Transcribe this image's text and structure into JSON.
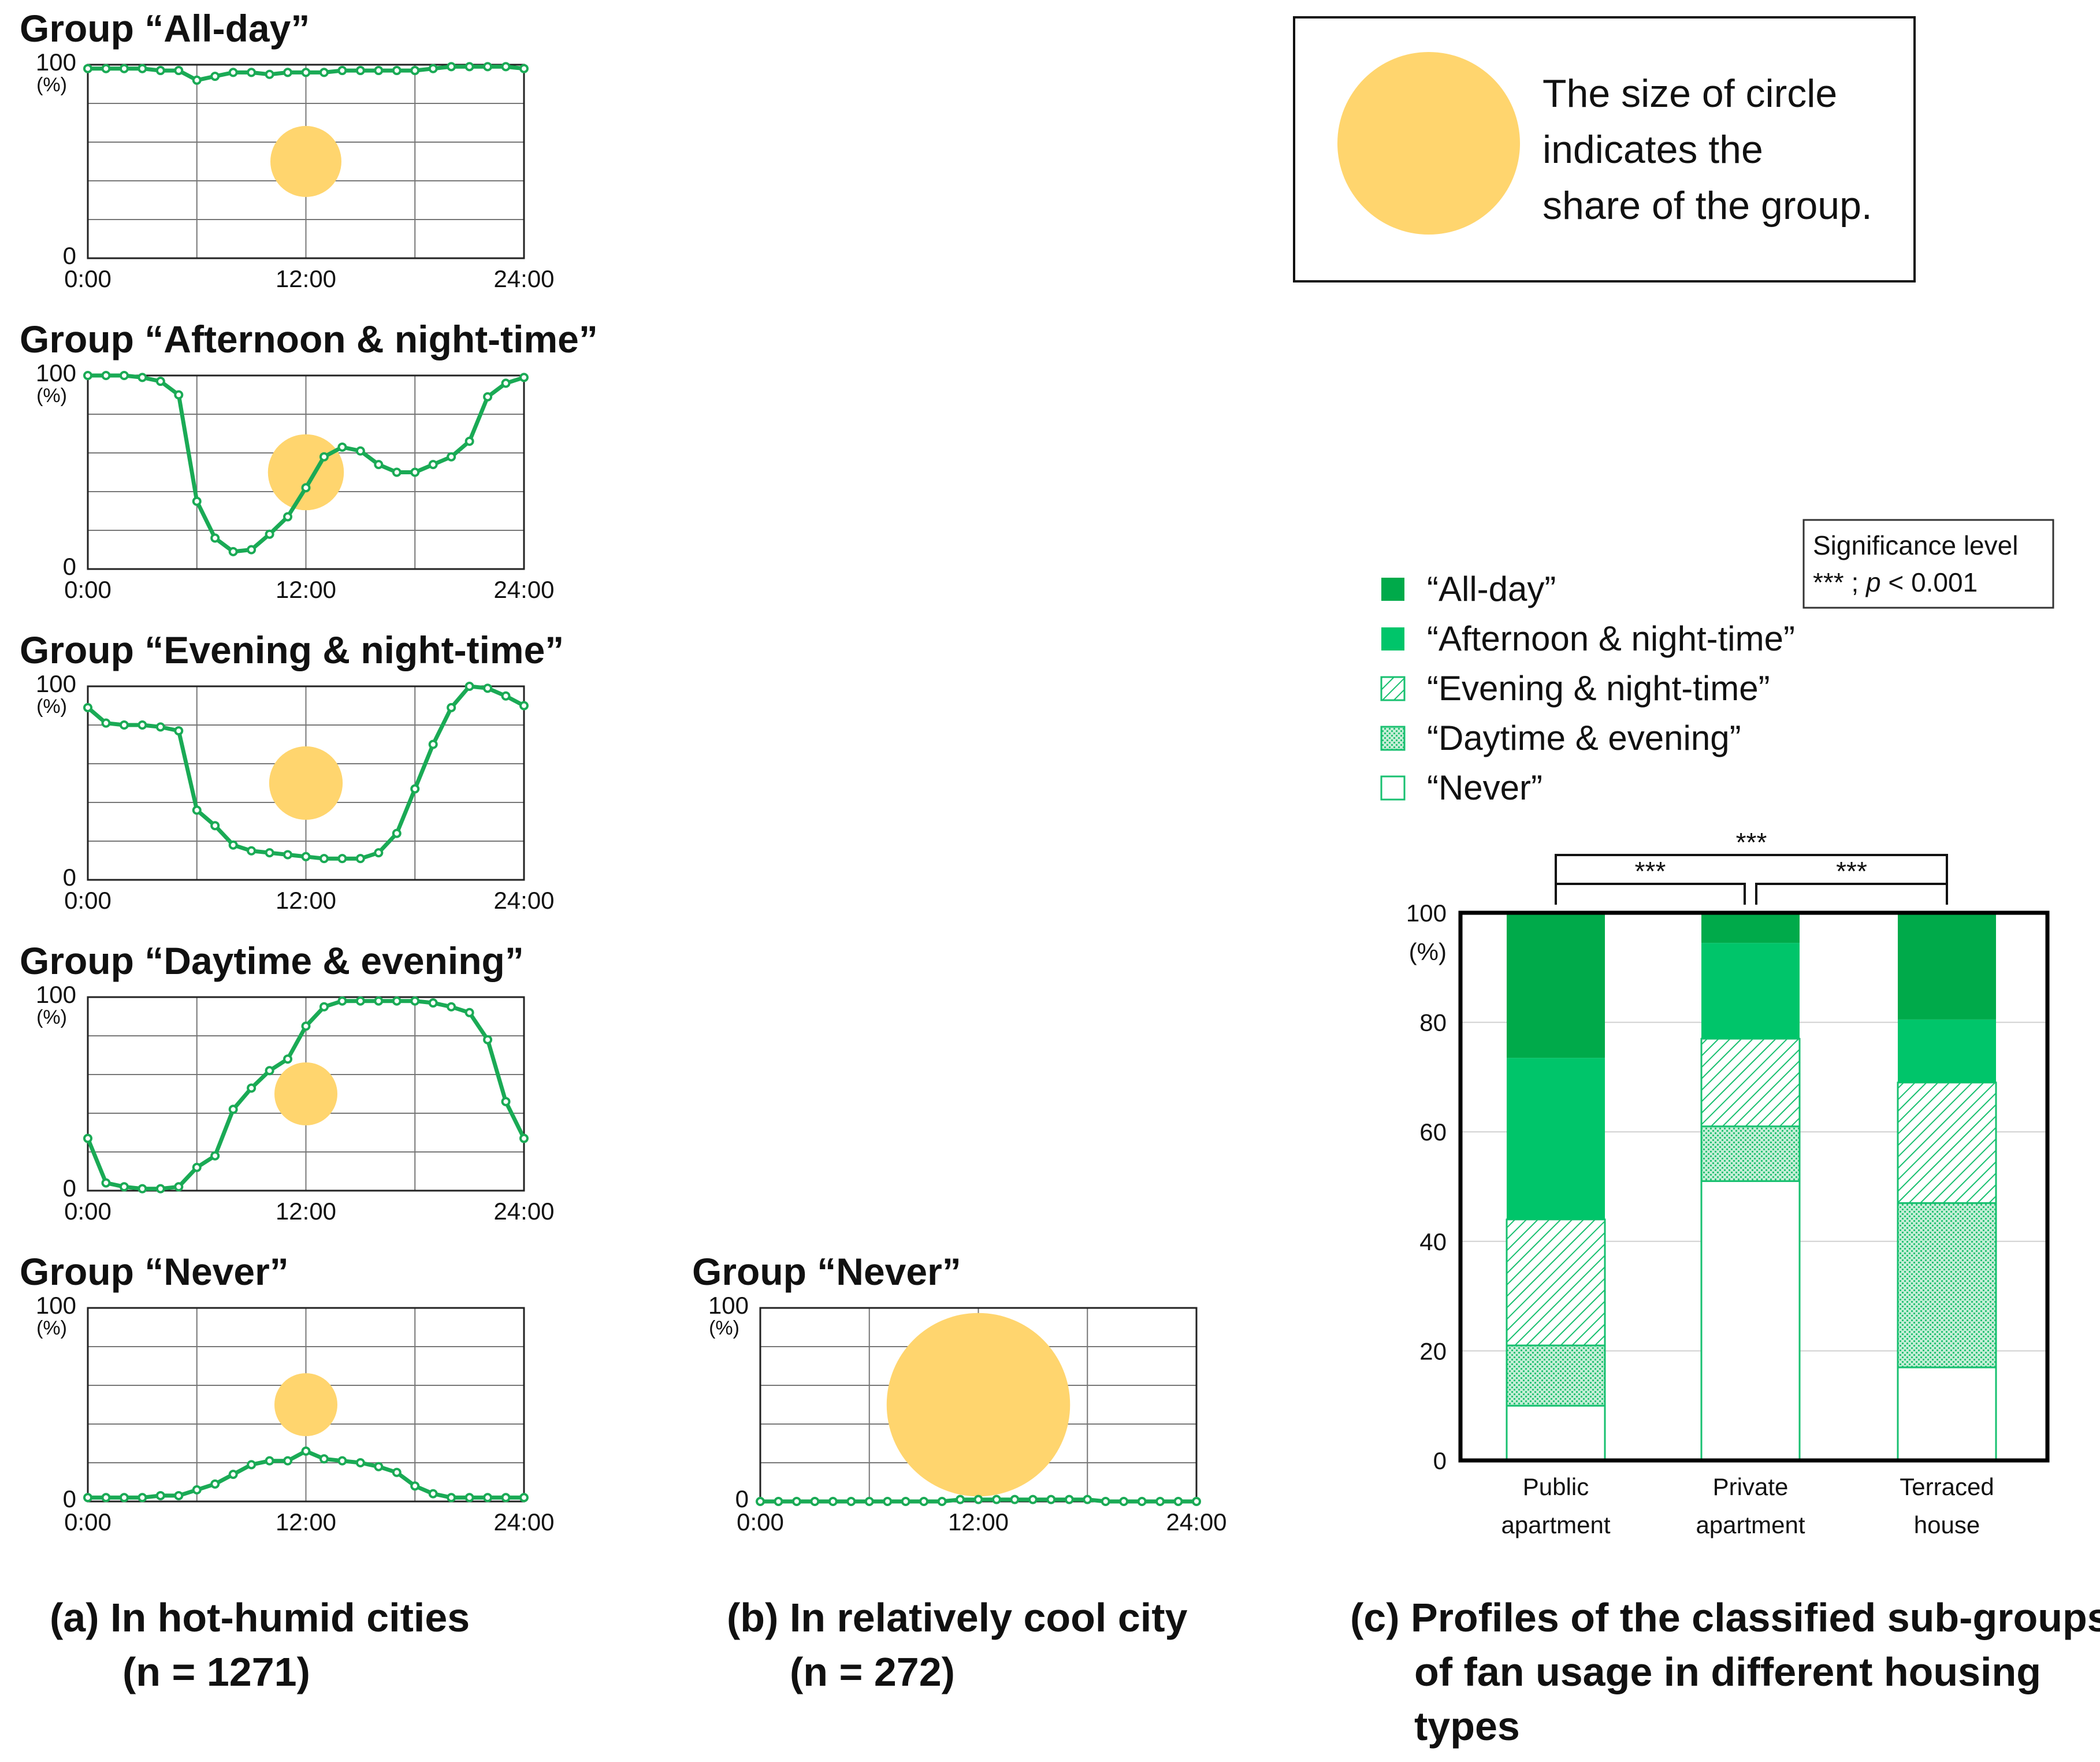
{
  "chart_data": [
    {
      "id": "all-day",
      "type": "line",
      "panel": "a",
      "title": "Group “All-day”",
      "ylim": [
        0,
        100
      ],
      "y_max_label": "100",
      "y_min_label": "0",
      "y_unit": "(%)",
      "x_tick_labels": [
        "0:00",
        "12:00",
        "24:00"
      ],
      "x": [
        0,
        1,
        2,
        3,
        4,
        5,
        6,
        7,
        8,
        9,
        10,
        11,
        12,
        13,
        14,
        15,
        16,
        17,
        18,
        19,
        20,
        21,
        22,
        23,
        24
      ],
      "values": [
        98,
        98,
        98,
        98,
        97,
        97,
        92,
        94,
        96,
        96,
        95,
        96,
        96,
        96,
        97,
        97,
        97,
        97,
        97,
        98,
        99,
        99,
        99,
        99,
        98
      ],
      "share": 0.042
    },
    {
      "id": "afternoon-night",
      "type": "line",
      "panel": "a",
      "title": "Group “Afternoon & night-time”",
      "ylim": [
        0,
        100
      ],
      "y_max_label": "100",
      "y_min_label": "0",
      "y_unit": "(%)",
      "x_tick_labels": [
        "0:00",
        "12:00",
        "24:00"
      ],
      "x": [
        0,
        1,
        2,
        3,
        4,
        5,
        6,
        7,
        8,
        9,
        10,
        11,
        12,
        13,
        14,
        15,
        16,
        17,
        18,
        19,
        20,
        21,
        22,
        23,
        24
      ],
      "values": [
        100,
        100,
        100,
        99,
        97,
        90,
        35,
        16,
        9,
        10,
        18,
        27,
        42,
        58,
        63,
        61,
        54,
        50,
        50,
        54,
        58,
        66,
        89,
        96,
        99
      ],
      "share": 0.048
    },
    {
      "id": "evening-night",
      "type": "line",
      "panel": "a",
      "title": "Group “Evening & night-time”",
      "ylim": [
        0,
        100
      ],
      "y_max_label": "100",
      "y_min_label": "0",
      "y_unit": "(%)",
      "x_tick_labels": [
        "0:00",
        "12:00",
        "24:00"
      ],
      "x": [
        0,
        1,
        2,
        3,
        4,
        5,
        6,
        7,
        8,
        9,
        10,
        11,
        12,
        13,
        14,
        15,
        16,
        17,
        18,
        19,
        20,
        21,
        22,
        23,
        24
      ],
      "values": [
        89,
        81,
        80,
        80,
        79,
        77,
        36,
        28,
        18,
        15,
        14,
        13,
        12,
        11,
        11,
        11,
        14,
        24,
        47,
        70,
        89,
        100,
        99,
        95,
        90
      ],
      "share": 0.045
    },
    {
      "id": "daytime-evening",
      "type": "line",
      "panel": "a",
      "title": "Group “Daytime & evening”",
      "ylim": [
        0,
        100
      ],
      "y_max_label": "100",
      "y_min_label": "0",
      "y_unit": "(%)",
      "x_tick_labels": [
        "0:00",
        "12:00",
        "24:00"
      ],
      "x": [
        0,
        1,
        2,
        3,
        4,
        5,
        6,
        7,
        8,
        9,
        10,
        11,
        12,
        13,
        14,
        15,
        16,
        17,
        18,
        19,
        20,
        21,
        22,
        23,
        24
      ],
      "values": [
        27,
        4,
        2,
        1,
        1,
        2,
        12,
        18,
        42,
        53,
        62,
        68,
        85,
        95,
        98,
        98,
        98,
        98,
        98,
        97,
        95,
        92,
        78,
        46,
        27
      ],
      "share": 0.033
    },
    {
      "id": "never-hot",
      "type": "line",
      "panel": "a",
      "title": "Group “Never”",
      "ylim": [
        0,
        100
      ],
      "y_max_label": "100",
      "y_min_label": "0",
      "y_unit": "(%)",
      "x_tick_labels": [
        "0:00",
        "12:00",
        "24:00"
      ],
      "x": [
        0,
        1,
        2,
        3,
        4,
        5,
        6,
        7,
        8,
        9,
        10,
        11,
        12,
        13,
        14,
        15,
        16,
        17,
        18,
        19,
        20,
        21,
        22,
        23,
        24
      ],
      "values": [
        2,
        2,
        2,
        2,
        3,
        3,
        6,
        9,
        14,
        19,
        21,
        21,
        26,
        22,
        21,
        20,
        18,
        15,
        8,
        4,
        2,
        2,
        2,
        2,
        2
      ],
      "share": 0.033
    },
    {
      "id": "never-cool",
      "type": "line",
      "panel": "b",
      "title": "Group “Never”",
      "ylim": [
        0,
        100
      ],
      "y_max_label": "100",
      "y_min_label": "0",
      "y_unit": "(%)",
      "x_tick_labels": [
        "0:00",
        "12:00",
        "24:00"
      ],
      "x": [
        0,
        1,
        2,
        3,
        4,
        5,
        6,
        7,
        8,
        9,
        10,
        11,
        12,
        13,
        14,
        15,
        16,
        17,
        18,
        19,
        20,
        21,
        22,
        23,
        24
      ],
      "values": [
        0,
        0,
        0,
        0,
        0,
        0,
        0,
        0,
        0,
        0,
        0,
        1,
        1,
        1,
        1,
        1,
        1,
        1,
        1,
        0,
        0,
        0,
        0,
        0,
        0
      ],
      "share": 0.28
    },
    {
      "id": "housing",
      "type": "bar",
      "stacked": true,
      "panel": "c",
      "ylim": [
        0,
        100
      ],
      "y_tick_labels": [
        "0",
        "20",
        "40",
        "60",
        "80",
        "100"
      ],
      "y_unit": "(%)",
      "categories": [
        {
          "line1": "Public",
          "line2": "apartment"
        },
        {
          "line1": "Private",
          "line2": "apartment"
        },
        {
          "line1": "Terraced",
          "line2": "house"
        }
      ],
      "series": [
        {
          "name": "“Never”",
          "pattern": "white",
          "values": [
            10,
            51,
            17
          ]
        },
        {
          "name": "“Daytime & evening”",
          "pattern": "dots",
          "values": [
            11,
            10,
            30
          ]
        },
        {
          "name": "“Evening & night-time”",
          "pattern": "hatch",
          "values": [
            23,
            16,
            22
          ]
        },
        {
          "name": "“Afternoon & night-time”",
          "pattern": "medium",
          "values": [
            29.5,
            17.5,
            11.5
          ]
        },
        {
          "name": "“All-day”",
          "pattern": "dark",
          "values": [
            26.5,
            5.5,
            19.5
          ]
        }
      ],
      "legend_order": [
        "“All-day”",
        "“Afternoon & night-time”",
        "“Evening & night-time”",
        "“Daytime & evening”",
        "“Never”"
      ],
      "significance": [
        {
          "from": 0,
          "to": 2,
          "label": "***"
        },
        {
          "from": 0,
          "to": 1,
          "label": "***"
        },
        {
          "from": 1,
          "to": 2,
          "label": "***"
        }
      ]
    }
  ],
  "legend_circle": {
    "lines": [
      "The size of circle",
      "indicates the",
      "share of the group."
    ]
  },
  "significance_box": {
    "title": "Significance level",
    "stars": "*** ; ",
    "p": "p",
    "rest": " < 0.001"
  },
  "captions": {
    "a": {
      "line1": "(a) In hot-humid cities",
      "line2": "(n = 1271)"
    },
    "b": {
      "line1": "(b) In relatively cool city",
      "line2": "(n = 272)"
    },
    "c": {
      "line1": "(c) Profiles of the classified sub-groups",
      "line2": "of fan usage in different housing",
      "line3": "types"
    }
  },
  "colors": {
    "line": "#1aaa55",
    "circle": "#ffd56e",
    "dark_green": "#00aa4a",
    "medium_green": "#00c56a",
    "light_green": "#18c070",
    "grid": "#555555"
  }
}
